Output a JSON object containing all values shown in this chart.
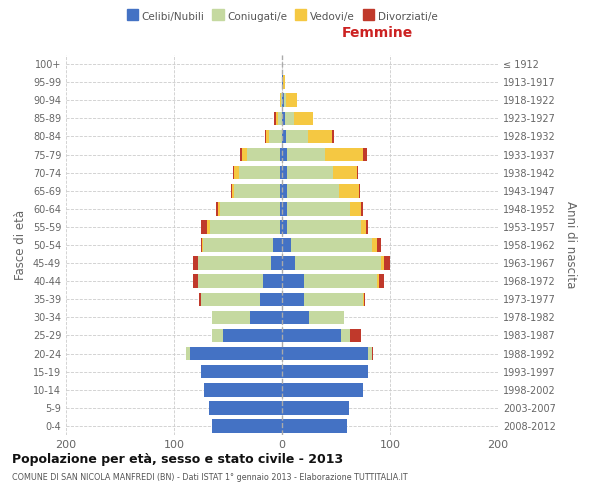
{
  "age_groups": [
    "0-4",
    "5-9",
    "10-14",
    "15-19",
    "20-24",
    "25-29",
    "30-34",
    "35-39",
    "40-44",
    "45-49",
    "50-54",
    "55-59",
    "60-64",
    "65-69",
    "70-74",
    "75-79",
    "80-84",
    "85-89",
    "90-94",
    "95-99",
    "100+"
  ],
  "birth_years": [
    "2008-2012",
    "2003-2007",
    "1998-2002",
    "1993-1997",
    "1988-1992",
    "1983-1987",
    "1978-1982",
    "1973-1977",
    "1968-1972",
    "1963-1967",
    "1958-1962",
    "1953-1957",
    "1948-1952",
    "1943-1947",
    "1938-1942",
    "1933-1937",
    "1928-1932",
    "1923-1927",
    "1918-1922",
    "1913-1917",
    "≤ 1912"
  ],
  "male_celibi": [
    65,
    68,
    72,
    75,
    85,
    55,
    30,
    20,
    18,
    10,
    8,
    2,
    2,
    2,
    2,
    2,
    0,
    0,
    0,
    0,
    0
  ],
  "male_coniugati": [
    0,
    0,
    0,
    0,
    4,
    10,
    35,
    55,
    60,
    68,
    65,
    65,
    55,
    42,
    38,
    30,
    12,
    4,
    1,
    0,
    0
  ],
  "male_vedovi": [
    0,
    0,
    0,
    0,
    0,
    0,
    0,
    0,
    0,
    0,
    1,
    2,
    2,
    2,
    4,
    5,
    3,
    2,
    1,
    0,
    0
  ],
  "male_divorziati": [
    0,
    0,
    0,
    0,
    0,
    0,
    0,
    2,
    4,
    4,
    1,
    6,
    2,
    1,
    1,
    2,
    1,
    1,
    0,
    0,
    0
  ],
  "female_celibi": [
    60,
    62,
    75,
    80,
    80,
    55,
    25,
    20,
    20,
    12,
    8,
    5,
    5,
    5,
    5,
    5,
    4,
    3,
    2,
    1,
    0
  ],
  "female_coniugati": [
    0,
    0,
    0,
    0,
    3,
    8,
    32,
    55,
    68,
    80,
    75,
    68,
    58,
    48,
    42,
    35,
    20,
    8,
    2,
    0,
    0
  ],
  "female_vedovi": [
    0,
    0,
    0,
    0,
    0,
    0,
    0,
    1,
    2,
    2,
    5,
    5,
    10,
    18,
    22,
    35,
    22,
    18,
    10,
    2,
    0
  ],
  "female_divorziati": [
    0,
    0,
    0,
    0,
    1,
    10,
    0,
    1,
    4,
    6,
    4,
    2,
    2,
    1,
    1,
    4,
    2,
    0,
    0,
    0,
    0
  ],
  "color_celibi": "#4472C4",
  "color_coniugati": "#c5d9a0",
  "color_vedovi": "#f5c842",
  "color_divorziati": "#c0392b",
  "title1": "Popolazione per età, sesso e stato civile - 2013",
  "title2": "COMUNE DI SAN NICOLA MANFREDI (BN) - Dati ISTAT 1° gennaio 2013 - Elaborazione TUTTITALIA.IT",
  "xlabel_right": "Femmine",
  "ylabel_left": "Fasce di età",
  "ylabel_right": "Anni di nascita",
  "xlim": 200,
  "bg_color": "#ffffff",
  "grid_color": "#cccccc"
}
